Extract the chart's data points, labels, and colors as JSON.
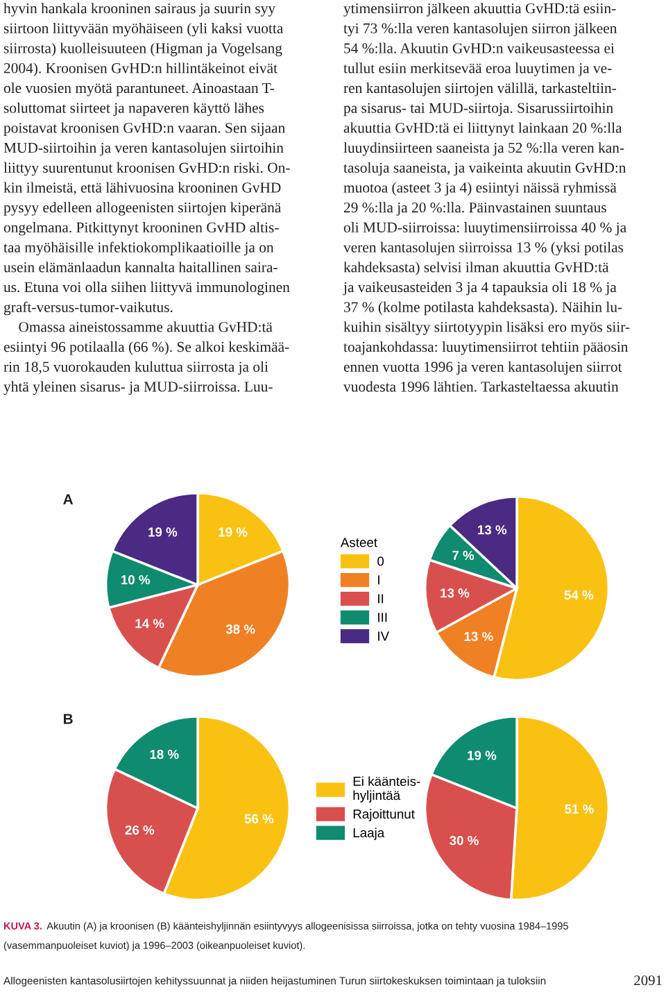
{
  "chart_data": [
    {
      "type": "other",
      "annotations": [
        "hyvin hankala krooninen sairaus ja suurin syy",
        "siirtoon liittyvään myöhäiseen (yli kaksi vuotta",
        "siirrosta) kuolleisuuteen (Higman ja Vogelsang",
        "2004). Kroonisen GvHD:n hillintäkeinot eivät",
        "ole vuosien myötä parantuneet. Ainoastaan T-",
        "soluttomat siirteet ja napaveren käyttö lähes",
        "poistavat kroonisen GvHD:n vaaran. Sen sijaan",
        "MUD-siirtoihin ja veren kantasolujen siirtoihin",
        "liittyy suurentunut kroonisen GvHD:n riski. On-",
        "kin ilmeistä, että lähivuosina krooninen GvHD",
        "pysyy edelleen allogeenisten siirtojen kiperänä",
        "ongelmana. Pitkittynyt krooninen GvHD altis-",
        "taa myöhäisille infektiokomplikaatioille ja on",
        "usein elämänlaadun kannalta haitallinen saira-",
        "us. Etuna voi olla siihen liittyvä immunologinen",
        "graft-versus-tumor-vaikutus.",
        "    Omassa aineistossamme akuuttia GvHD:tä",
        "esiintyi 96 potilaalla (66 %). Se alkoi keskimää-",
        "rin 18,5 vuorokauden kuluttua siirrosta ja oli",
        "yhtä yleinen sisarus- ja MUD-siirroissa. Luu-"
      ]
    },
    {
      "type": "other",
      "annotations": [
        "ytimensiirron jälkeen akuuttia GvHD:tä esiin-",
        "tyi 73 %:lla veren kantasolujen siirron jälkeen",
        "54 %:lla. Akuutin GvHD:n vaikeusasteessa ei",
        "tullut esiin merkitsevää eroa luuytimen ja ve-",
        "ren kantasolujen siirtojen välillä, tarkasteltiin-",
        "pa sisarus- tai MUD-siirtoja. Sisarussiirtoihin",
        "akuuttia GvHD:tä ei liittynyt lainkaan 20 %:lla",
        "luuydinsiirteen saaneista ja 52 %:lla veren kan-",
        "tasoluja saaneista, ja vaikeinta akuutin GvHD:n",
        "muotoa (asteet 3 ja 4) esiintyi näissä ryhmissä",
        "29 %:lla ja 20 %:lla. Päinvastainen suuntaus",
        "oli MUD-siirroissa: luuytimensiirroissa 40 % ja",
        "veren kantasolujen siirroissa 13 % (yksi potilas",
        "kahdeksasta) selvisi ilman akuuttia GvHD:tä",
        "ja vaikeusasteiden 3 ja 4 tapauksia oli 18 % ja",
        "37 % (kolme potilasta kahdeksasta). Näihin lu-",
        "kuihin sisältyy siirtotyypin lisäksi ero myös siir-",
        "toajankohdassa: luuytimensiirrot tehtiin pääosin",
        "ennen vuotta 1996 ja veren kantasolujen siirrot",
        "vuodesta 1996 lähtien. Tarkasteltaessa akuutin"
      ]
    },
    {
      "type": "pie",
      "title": "A",
      "legend": "right",
      "legend_title": "Asteet",
      "categories": [
        "0",
        "I",
        "II",
        "III",
        "IV"
      ],
      "values": [
        19,
        38,
        14,
        10,
        19
      ],
      "value_labels": [
        "19 %",
        "38 %",
        "14 %",
        "10 %",
        "19 %"
      ],
      "colors": [
        "#f9c213",
        "#f08024",
        "#d8504e",
        "#0f8b6f",
        "#4a2a82"
      ]
    },
    {
      "type": "pie",
      "categories": [
        null,
        null,
        null,
        null,
        null
      ],
      "values": [
        54,
        13,
        13,
        7,
        13
      ],
      "value_labels": [
        "54 %",
        "13 %",
        "13 %",
        "7 %",
        "13 %"
      ],
      "colors": [
        "#f9c213",
        "#f08024",
        "#d8504e",
        "#0f8b6f",
        "#4a2a82"
      ]
    },
    {
      "type": "pie",
      "title": "B",
      "legend": "right",
      "categories": [
        "Ei käänteis-\nhyljintää",
        "Rajoittunut",
        "Laaja"
      ],
      "values": [
        56,
        26,
        18
      ],
      "value_labels": [
        "56 %",
        "26 %",
        "18 %"
      ],
      "colors": [
        "#f9c213",
        "#d8504e",
        "#0f8b6f"
      ]
    },
    {
      "type": "pie",
      "categories": [
        null,
        null,
        null
      ],
      "values": [
        51,
        30,
        19
      ],
      "value_labels": [
        "51 %",
        "30 %",
        "19 %"
      ],
      "colors": [
        "#f9c213",
        "#d8504e",
        "#0f8b6f"
      ]
    },
    {
      "type": "other",
      "annotations": [
        "KUVA 3.",
        "Akuutin (A) ja kroonisen (B) käänteishyljinnän esiintyvyys allogeenisissa siirroissa, jotka on tehty vuosina 1984–1995",
        "(vasemmanpuoleiset kuviot) ja 1996–2003 (oikeanpuoleiset kuviot)."
      ]
    },
    {
      "type": "other",
      "annotations": [
        "Allogeenisten kantasolusiirtojen kehityssuunnat ja niiden heijastuminen Turun siirtokeskuksen toimintaan ja tuloksiin",
        "2091"
      ]
    }
  ]
}
